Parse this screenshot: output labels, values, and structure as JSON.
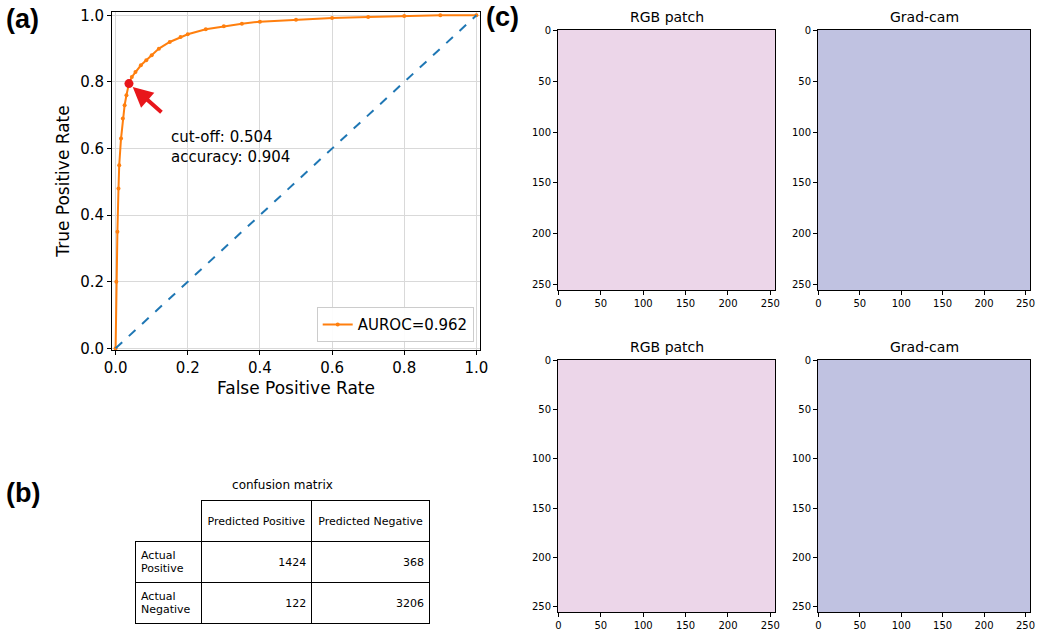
{
  "chart_data": [
    {
      "type": "line",
      "x_label": "False Positive Rate",
      "y_label": "True Positive Rate",
      "series": [
        {
          "name": "AUROC=0.962",
          "color": "#ff7f0e",
          "marker": "circle",
          "line_style": "solid",
          "x": [
            0,
            0.002,
            0.005,
            0.008,
            0.01,
            0.015,
            0.02,
            0.025,
            0.03,
            0.037,
            0.045,
            0.055,
            0.07,
            0.085,
            0.1,
            0.12,
            0.15,
            0.18,
            0.2,
            0.25,
            0.3,
            0.35,
            0.4,
            0.5,
            0.6,
            0.7,
            0.8,
            0.9,
            1.0
          ],
          "values": [
            0,
            0.2,
            0.35,
            0.48,
            0.55,
            0.63,
            0.69,
            0.73,
            0.76,
            0.795,
            0.815,
            0.83,
            0.85,
            0.865,
            0.88,
            0.9,
            0.92,
            0.935,
            0.943,
            0.958,
            0.967,
            0.975,
            0.981,
            0.987,
            0.992,
            0.995,
            0.998,
            1.0,
            1.0
          ]
        },
        {
          "color": "#1f77b4",
          "line_style": "dash",
          "x": [
            0,
            1
          ],
          "values": [
            0,
            1
          ]
        }
      ],
      "cutoff_point": {
        "x": 0.037,
        "y": 0.795,
        "color": "#e8161b"
      },
      "annotations": [
        {
          "text": [
            "cut-off: 0.504",
            "accuracy: 0.904"
          ],
          "color": "#e8161b"
        }
      ],
      "xlim": [
        -0.01,
        1.01
      ],
      "ylim": [
        -0.005,
        1.01
      ],
      "xticks": [
        {
          "value": 0,
          "label": "0.0"
        },
        0.2,
        0.4,
        0.6,
        0.8,
        {
          "value": 1,
          "label": "1.0"
        }
      ],
      "yticks": [
        {
          "value": 0,
          "label": "0.0"
        },
        0.2,
        0.4,
        0.6,
        0.8,
        {
          "value": 1,
          "label": "1.0"
        }
      ],
      "grid": true,
      "legend": "lower right"
    },
    {
      "type": "image",
      "title": "RGB patch",
      "color": "#c98ac0",
      "xlim": [
        -0.5,
        255.5
      ],
      "ylim": [
        255.5,
        -0.5
      ],
      "xticks": [
        0,
        50,
        100,
        150,
        200,
        250
      ],
      "yticks": [
        0,
        50,
        100,
        150,
        200,
        250
      ],
      "grid": false
    },
    {
      "type": "image",
      "title": "Grad-cam",
      "color": "#4a4fa8",
      "xlim": [
        -0.5,
        255.5
      ],
      "ylim": [
        255.5,
        -0.5
      ],
      "xticks": [
        0,
        50,
        100,
        150,
        200,
        250
      ],
      "yticks": [
        0,
        50,
        100,
        150,
        200,
        250
      ],
      "grid": false
    },
    {
      "type": "image",
      "title": "RGB patch",
      "color": "#c98ac0",
      "xlim": [
        -0.5,
        255.5
      ],
      "ylim": [
        255.5,
        -0.5
      ],
      "xticks": [
        0,
        50,
        100,
        150,
        200,
        250
      ],
      "yticks": [
        0,
        50,
        100,
        150,
        200,
        250
      ],
      "grid": false
    },
    {
      "type": "image",
      "title": "Grad-cam",
      "color": "#4a4fa8",
      "xlim": [
        -0.5,
        255.5
      ],
      "ylim": [
        255.5,
        -0.5
      ],
      "xticks": [
        0,
        50,
        100,
        150,
        200,
        250
      ],
      "yticks": [
        0,
        50,
        100,
        150,
        200,
        250
      ],
      "grid": false
    }
  ],
  "table": {
    "title": "confusion matrix",
    "columns": [
      "Predicted Positive",
      "Predicted Negative"
    ],
    "rows": [
      {
        "label": "Actual Positive",
        "values": [
          1424,
          368
        ]
      },
      {
        "label": "Actual Negative",
        "values": [
          122,
          3206
        ]
      }
    ]
  },
  "panel_labels": [
    "(a)",
    "(b)",
    "(c)"
  ]
}
